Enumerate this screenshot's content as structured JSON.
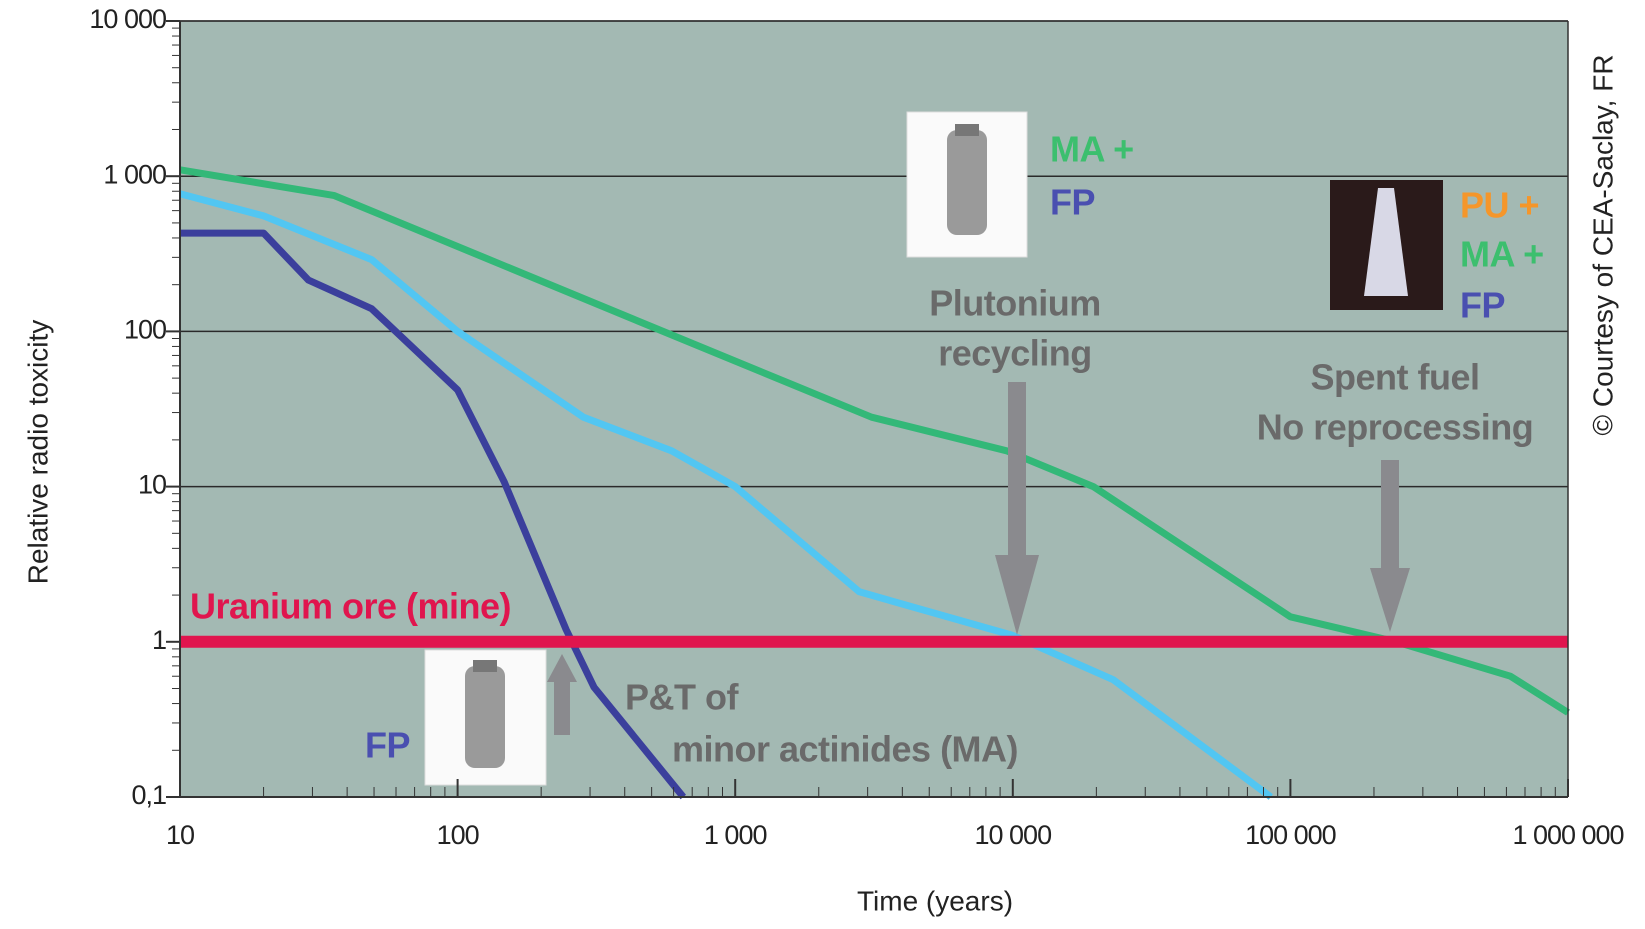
{
  "chart_data": {
    "type": "line",
    "xlabel": "Time (years)",
    "ylabel": "Relative radio toxicity",
    "xscale": "log",
    "yscale": "log",
    "grid": true,
    "background": "#a3b9b3",
    "xlim": [
      10,
      1000000
    ],
    "ylim": [
      0.1,
      10000
    ],
    "xticks": [
      10,
      100,
      {
        "value": 1000,
        "label": "1 000"
      },
      {
        "value": 10000,
        "label": "10 000"
      },
      {
        "value": 100000,
        "label": "100 000"
      },
      {
        "value": 1000000,
        "label": "1 000 000"
      }
    ],
    "yticks": [
      {
        "value": 0.1,
        "label": "0,1"
      },
      1,
      10,
      100,
      {
        "value": 1000,
        "label": "1 000"
      },
      {
        "value": 10000,
        "label": "10 000"
      }
    ],
    "series": [
      {
        "color": "#33b878",
        "x": [
          10,
          36,
          590,
          3100,
          9500,
          19500,
          100000,
          240000,
          620000,
          1000000
        ],
        "values": [
          1100,
          750,
          95,
          28,
          17,
          10,
          1.45,
          1,
          0.6,
          0.35
        ]
      },
      {
        "color": "#52c6f2",
        "x": [
          10,
          20,
          49,
          100,
          284,
          590,
          1000,
          2800,
          10000,
          23000,
          85000
        ],
        "values": [
          770,
          555,
          290,
          100,
          28,
          17,
          10,
          2.1,
          1.1,
          0.57,
          0.1
        ]
      },
      {
        "color": "#3b3f9c",
        "x": [
          10,
          20,
          29,
          49,
          100,
          147,
          246,
          310,
          650
        ],
        "values": [
          430,
          430,
          214,
          140,
          42,
          10.8,
          1.2,
          0.51,
          0.1
        ]
      },
      {
        "name": "Uranium ore (mine)",
        "color": "#e0154e",
        "x": [
          10,
          1000000
        ],
        "values": [
          1,
          1
        ]
      }
    ],
    "annotations": [
      {
        "text": "MA +",
        "color": "#3cbf6e"
      },
      {
        "text": "FP",
        "color": "#4a4fb0"
      },
      {
        "text": "PU +",
        "color": "#f5962a"
      },
      {
        "text": "MA +",
        "color": "#3cbf6e"
      },
      {
        "text": "FP",
        "color": "#4a4fb0"
      },
      {
        "text": "Plutonium",
        "color": "#6a6a6a"
      },
      {
        "text": "recycling",
        "color": "#6a6a6a"
      },
      {
        "text": "Spent fuel",
        "color": "#6a6a6a"
      },
      {
        "text": "No reprocessing",
        "color": "#6a6a6a"
      },
      {
        "text": "P&T of",
        "color": "#6a6a6a"
      },
      {
        "text": "minor actinides (MA)",
        "color": "#6a6a6a"
      },
      {
        "text": "FP",
        "color": "#4a4fb0"
      }
    ],
    "credit": "© Courtesy of  CEA-Saclay, FR"
  }
}
